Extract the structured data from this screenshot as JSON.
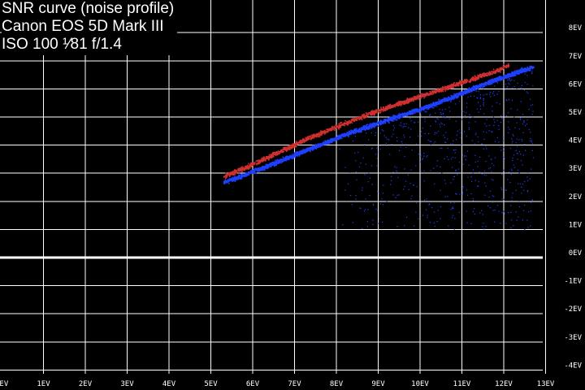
{
  "title_lines": [
    "SNR curve (noise profile)",
    "Canon EOS 5D Mark III"
  ],
  "exposure": {
    "iso": "ISO 100",
    "shutter": "¹⁄81",
    "aperture": "f/1.4"
  },
  "colors": {
    "background": "#000000",
    "grid": "#ffffff",
    "red_series": "#d03030",
    "blue_series": "#2040ff"
  },
  "chart_data": {
    "type": "scatter",
    "title": "SNR curve (noise profile)",
    "xlabel": "",
    "ylabel": "",
    "xlim": [
      0,
      13.3
    ],
    "ylim": [
      -4.5,
      8.6
    ],
    "grid": true,
    "x_ticks": [
      0,
      1,
      2,
      3,
      4,
      5,
      6,
      7,
      8,
      9,
      10,
      11,
      12,
      13
    ],
    "x_tick_labels": [
      "0EV",
      "1EV",
      "2EV",
      "3EV",
      "4EV",
      "5EV",
      "6EV",
      "7EV",
      "8EV",
      "9EV",
      "10EV",
      "11EV",
      "12EV",
      "13EV"
    ],
    "y_ticks": [
      8,
      7,
      6,
      5,
      4,
      3,
      2,
      1,
      0,
      -1,
      -2,
      -3,
      -4
    ],
    "y_tick_labels": [
      "8EV",
      "7EV",
      "6EV",
      "5EV",
      "4EV",
      "3EV",
      "2EV",
      "1EV",
      "0EV",
      "-1EV",
      "-2EV",
      "-3EV",
      "-4EV"
    ],
    "series": [
      {
        "color": "red",
        "x": [
          5.3,
          5.8,
          6.3,
          6.8,
          7.3,
          7.8,
          8.3,
          8.8,
          9.3,
          9.8,
          10.3,
          10.8,
          11.3,
          11.8,
          12.1
        ],
        "y": [
          2.9,
          3.2,
          3.55,
          3.9,
          4.25,
          4.55,
          4.85,
          5.15,
          5.4,
          5.65,
          5.9,
          6.15,
          6.4,
          6.65,
          6.85
        ]
      },
      {
        "color": "blue",
        "x": [
          5.3,
          5.8,
          6.3,
          6.8,
          7.3,
          7.8,
          8.3,
          8.8,
          9.3,
          9.8,
          10.3,
          10.8,
          11.3,
          11.8,
          12.3,
          12.7
        ],
        "y": [
          2.7,
          2.95,
          3.25,
          3.55,
          3.85,
          4.15,
          4.45,
          4.7,
          4.95,
          5.2,
          5.45,
          5.75,
          6.05,
          6.35,
          6.6,
          6.8
        ]
      }
    ]
  }
}
